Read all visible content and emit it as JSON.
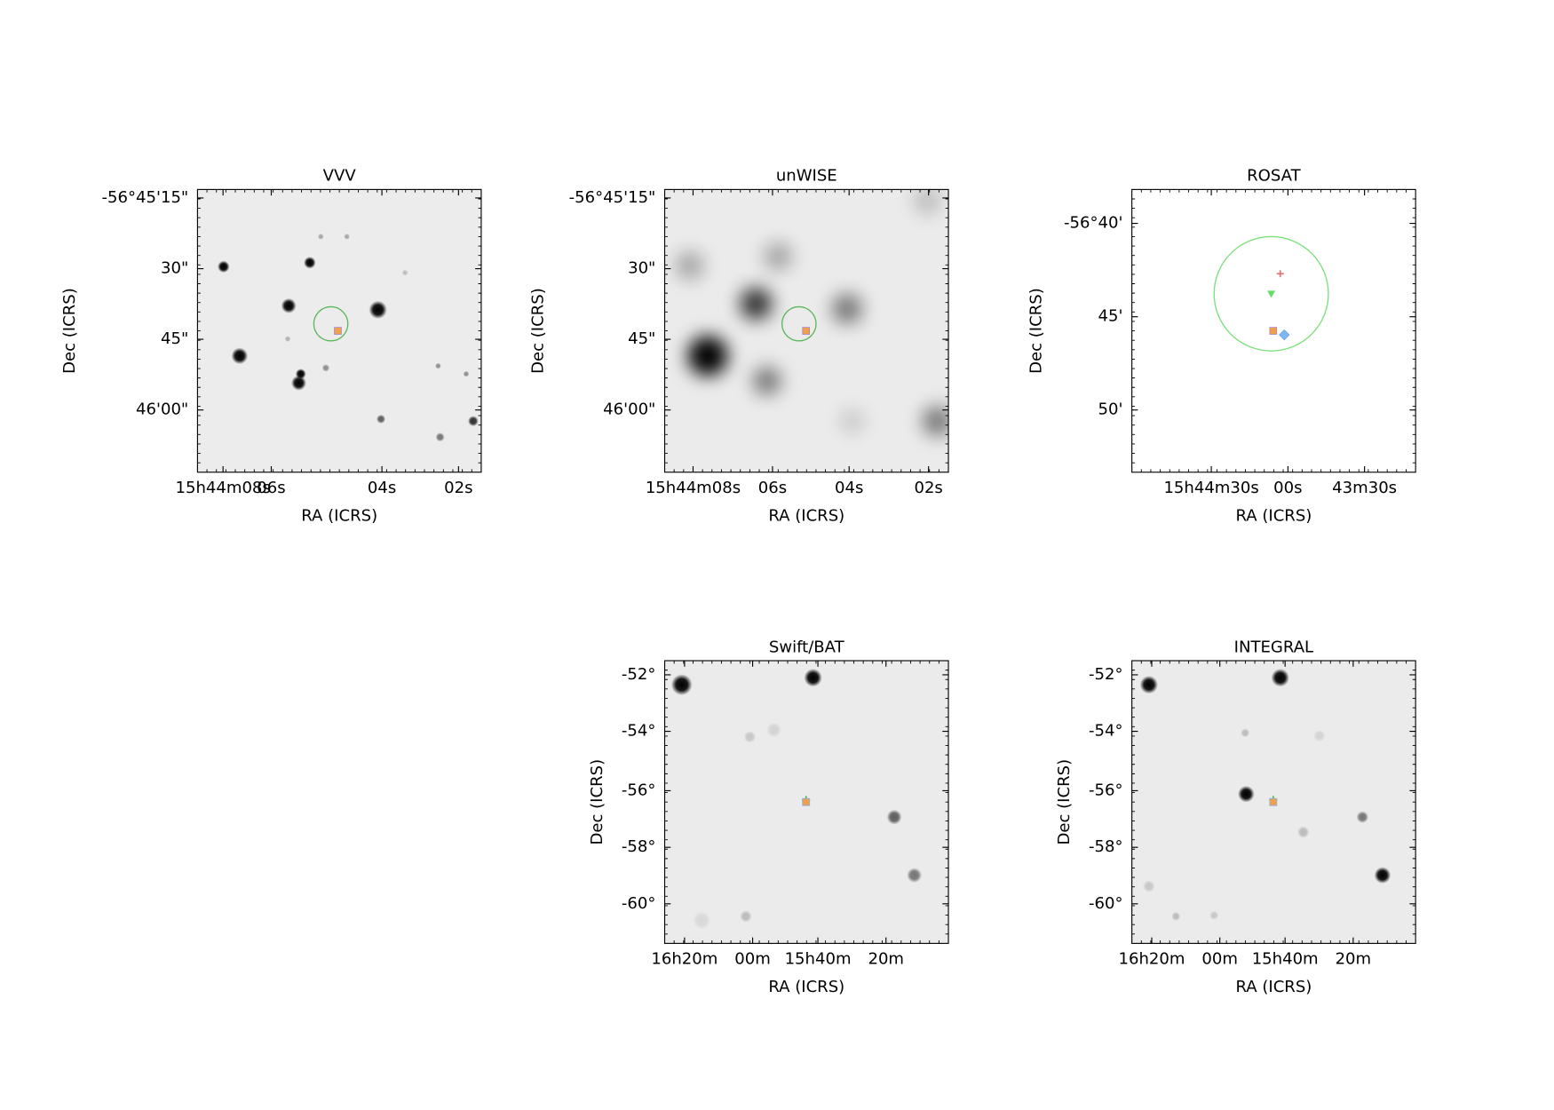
{
  "panels": [
    {
      "title": "VVV",
      "xlabel": "RA (ICRS)",
      "ylabel": "Dec (ICRS)",
      "xticks": [
        "15h44m08s",
        "06s",
        "04s",
        "02s"
      ],
      "yticks": [
        "-56°45'15\"",
        "30\"",
        "45\"",
        "46'00\""
      ]
    },
    {
      "title": "unWISE",
      "xlabel": "RA (ICRS)",
      "ylabel": "Dec (ICRS)",
      "xticks": [
        "15h44m08s",
        "06s",
        "04s",
        "02s"
      ],
      "yticks": [
        "-56°45'15\"",
        "30\"",
        "45\"",
        "46'00\""
      ]
    },
    {
      "title": "ROSAT",
      "xlabel": "RA (ICRS)",
      "ylabel": "Dec (ICRS)",
      "xticks": [
        "15h44m30s",
        "00s",
        "43m30s"
      ],
      "yticks": [
        "-56°40'",
        "45'",
        "50'"
      ]
    },
    {
      "title": "Swift/BAT",
      "xlabel": "RA (ICRS)",
      "ylabel": "Dec (ICRS)",
      "xticks": [
        "16h20m",
        "00m",
        "15h40m",
        "20m"
      ],
      "yticks": [
        "-52°",
        "-54°",
        "-56°",
        "-58°",
        "-60°"
      ]
    },
    {
      "title": "INTEGRAL",
      "xlabel": "RA (ICRS)",
      "ylabel": "Dec (ICRS)",
      "xticks": [
        "16h20m",
        "00m",
        "15h40m",
        "20m"
      ],
      "yticks": [
        "-52°",
        "-54°",
        "-56°",
        "-58°",
        "-60°"
      ]
    }
  ]
}
